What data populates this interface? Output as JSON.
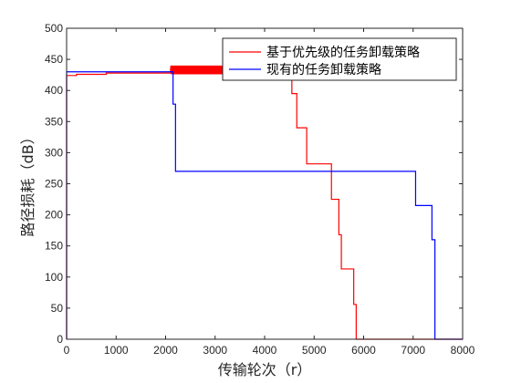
{
  "chart_data": {
    "type": "line",
    "title": "",
    "xlabel": "传输轮次（r）",
    "ylabel": "路径损耗（dB）",
    "xlim": [
      0,
      8000
    ],
    "ylim": [
      0,
      500
    ],
    "xticks": [
      0,
      1000,
      2000,
      3000,
      4000,
      5000,
      6000,
      7000,
      8000
    ],
    "yticks": [
      0,
      50,
      100,
      150,
      200,
      250,
      300,
      350,
      400,
      450,
      500
    ],
    "grid": false,
    "legend_position": "top-right",
    "series": [
      {
        "name": "基于优先级的任务卸载策略",
        "color": "#ff0000",
        "x": [
          0,
          0,
          200,
          200,
          800,
          800,
          2100,
          2100,
          3400,
          4500,
          4550,
          4550,
          4650,
          4650,
          4850,
          4850,
          5350,
          5350,
          5500,
          5500,
          5550,
          5550,
          5800,
          5800,
          5850,
          5850,
          8000
        ],
        "y": [
          0,
          424,
          424,
          426,
          426,
          428,
          428,
          435,
          437,
          437,
          437,
          395,
          395,
          340,
          340,
          282,
          282,
          225,
          225,
          168,
          168,
          113,
          113,
          56,
          56,
          0,
          0
        ]
      },
      {
        "name": "现有的任务卸载策略",
        "color": "#0000ff",
        "x": [
          0,
          0,
          2150,
          2150,
          2200,
          2200,
          7050,
          7050,
          7380,
          7380,
          7440,
          7440,
          8000
        ],
        "y": [
          0,
          430,
          430,
          378,
          378,
          270,
          270,
          215,
          215,
          160,
          160,
          0,
          0
        ]
      }
    ],
    "noise_band": {
      "series_index": 0,
      "x_range": [
        2100,
        3400
      ],
      "y_low": 426,
      "y_high": 440
    }
  }
}
